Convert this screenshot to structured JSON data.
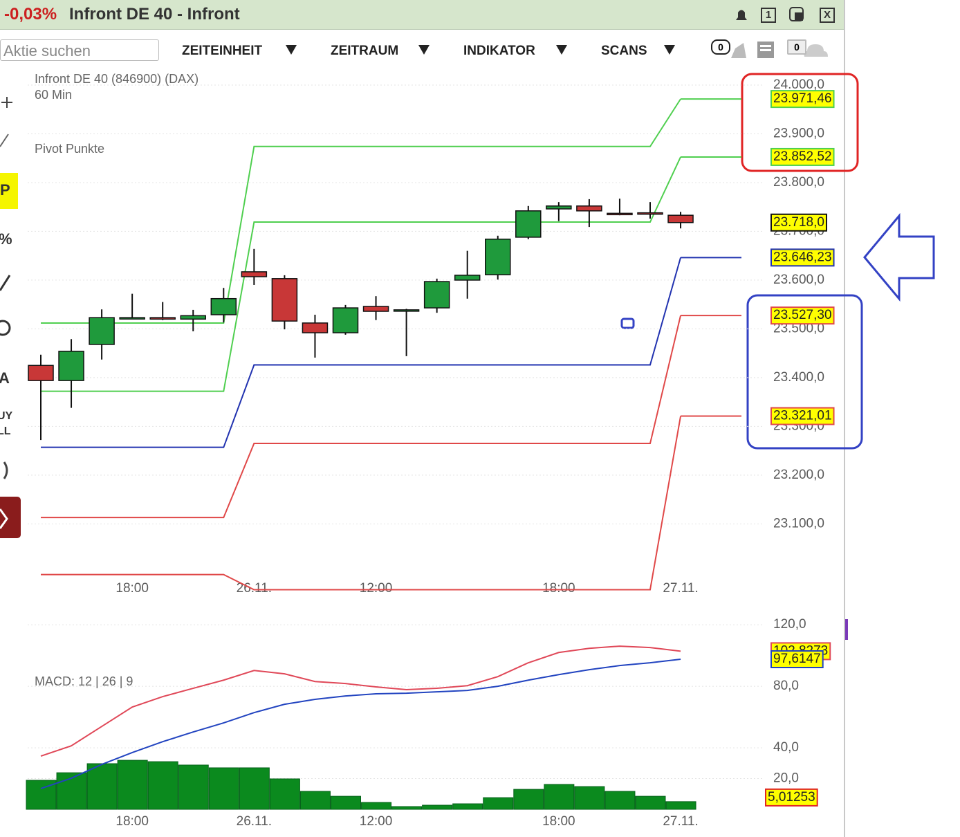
{
  "header": {
    "change": "-0,03%",
    "title": "Infront DE 40 - Infront",
    "window_buttons": [
      "1",
      "X"
    ]
  },
  "toolbar": {
    "search_placeholder": "Aktie suchen",
    "menus": [
      "ZEITEINHEIT",
      "ZEITRAUM",
      "INDIKATOR",
      "SCANS"
    ],
    "badges": [
      "0",
      "0"
    ]
  },
  "left_tools": [
    "P",
    "%",
    "A",
    "UY",
    "LL"
  ],
  "chart_data": [
    {
      "type": "candlestick",
      "title": "Infront DE 40 (846900) (DAX)",
      "subtitle": "60 Min",
      "annotation": "Pivot Punkte",
      "categories": [
        null,
        null,
        null,
        "18:00",
        null,
        null,
        null,
        "26.11.",
        null,
        null,
        null,
        "12:00",
        null,
        null,
        null,
        null,
        null,
        "18:00",
        null,
        null,
        null,
        "27.11."
      ],
      "open": [
        23425,
        23394,
        23468,
        23523,
        23523,
        23520,
        23529,
        23617,
        23603,
        23512,
        23492,
        23546,
        23539,
        23543,
        23600,
        23611,
        23688,
        23746,
        23752,
        23737,
        23738,
        23733
      ],
      "high": [
        23447,
        23479,
        23540,
        23572,
        23555,
        23539,
        23584,
        23664,
        23610,
        23529,
        23549,
        23567,
        23541,
        23603,
        23660,
        23691,
        23752,
        23760,
        23766,
        23767,
        23760,
        23740
      ],
      "low": [
        23272,
        23338,
        23437,
        23520,
        23518,
        23495,
        23513,
        23590,
        23499,
        23441,
        23488,
        23518,
        23444,
        23533,
        23562,
        23601,
        23684,
        23721,
        23709,
        23733,
        23726,
        23706
      ],
      "close": [
        23394,
        23454,
        23523,
        23523,
        23520,
        23527,
        23562,
        23607,
        23516,
        23492,
        23543,
        23536,
        23539,
        23597,
        23610,
        23684,
        23742,
        23752,
        23742,
        23736,
        23737,
        23718
      ],
      "up_color": "#1f9a3c",
      "down_color": "#c83737",
      "last_label": "23.718,0",
      "series": [
        {
          "color": "#4fcf4f",
          "values": [
            23512,
            23512,
            23512,
            23512,
            23512,
            23512,
            23512,
            23874,
            23874,
            23874,
            23874,
            23874,
            23874,
            23874,
            23874,
            23874,
            23874,
            23874,
            23874,
            23874,
            23874,
            23971.46
          ],
          "last_label": "23.971,46"
        },
        {
          "color": "#4fcf4f",
          "values": [
            23372,
            23372,
            23372,
            23372,
            23372,
            23372,
            23372,
            23719,
            23719,
            23719,
            23719,
            23719,
            23719,
            23719,
            23719,
            23719,
            23719,
            23719,
            23719,
            23719,
            23719,
            23852.52
          ],
          "last_label": "23.852,52"
        },
        {
          "color": "#2233b0",
          "values": [
            23257,
            23257,
            23257,
            23257,
            23257,
            23257,
            23257,
            23426,
            23426,
            23426,
            23426,
            23426,
            23426,
            23426,
            23426,
            23426,
            23426,
            23426,
            23426,
            23426,
            23426,
            23646.23
          ],
          "last_label": "23.646,23"
        },
        {
          "color": "#e04848",
          "values": [
            23113,
            23113,
            23113,
            23113,
            23113,
            23113,
            23113,
            23265,
            23265,
            23265,
            23265,
            23265,
            23265,
            23265,
            23265,
            23265,
            23265,
            23265,
            23265,
            23265,
            23265,
            23527.3
          ],
          "last_label": "23.527,30"
        },
        {
          "color": "#e04848",
          "values": [
            22996,
            22996,
            22996,
            22996,
            22996,
            22996,
            22996,
            22965,
            22965,
            22965,
            22965,
            22965,
            22965,
            22965,
            22965,
            22965,
            22965,
            22965,
            22965,
            22965,
            22965,
            23321.01
          ],
          "last_label": "23.321,01"
        }
      ],
      "ylim": [
        22960,
        24040
      ],
      "yticks": [
        {
          "value": 24000,
          "label": "24.000,0"
        },
        {
          "value": 23900,
          "label": "23.900,0"
        },
        {
          "value": 23800,
          "label": "23.800,0"
        },
        {
          "value": 23700,
          "label": "23.700,0"
        },
        {
          "value": 23600,
          "label": "23.600,0"
        },
        {
          "value": 23500,
          "label": "23.500,0"
        },
        {
          "value": 23400,
          "label": "23.400,0"
        },
        {
          "value": 23300,
          "label": "23.300,0"
        },
        {
          "value": 23200,
          "label": "23.200,0"
        },
        {
          "value": 23100,
          "label": "23.100,0"
        }
      ],
      "grid": true
    },
    {
      "type": "macd",
      "title": "MACD: 12 | 26 | 9",
      "categories": [
        null,
        null,
        null,
        "18:00",
        null,
        null,
        null,
        "26.11.",
        null,
        null,
        null,
        "12:00",
        null,
        null,
        null,
        null,
        null,
        "18:00",
        null,
        null,
        null,
        "27.11."
      ],
      "series": [
        {
          "color": "#e04858",
          "values": [
            34.6,
            41.3,
            53.9,
            66.5,
            73.3,
            78.7,
            84.0,
            90.3,
            88.1,
            83.1,
            81.8,
            79.6,
            77.8,
            78.7,
            80.4,
            86.3,
            95.3,
            102.0,
            104.7,
            106.1,
            105.2,
            102.8273
          ],
          "last_label": "102,8273"
        },
        {
          "color": "#2244c0",
          "values": [
            13.5,
            20.2,
            29.2,
            36.9,
            44.0,
            50.3,
            56.2,
            62.9,
            68.3,
            71.5,
            73.7,
            75.1,
            75.5,
            76.4,
            77.3,
            80.0,
            84.0,
            87.6,
            90.8,
            93.5,
            95.3,
            97.6147
          ],
          "last_label": "97,6147"
        }
      ],
      "histogram": {
        "color": "#0b8a1e",
        "values": [
          18.9,
          23.8,
          29.7,
          31.9,
          31.0,
          28.8,
          27.0,
          27.0,
          19.8,
          11.7,
          8.5,
          4.5,
          1.8,
          2.7,
          3.6,
          7.6,
          13.0,
          16.2,
          14.8,
          11.7,
          8.5,
          5.01253
        ],
        "last_label": "5,01253"
      },
      "ylim": [
        0,
        130
      ],
      "yticks": [
        {
          "value": 120,
          "label": "120,0"
        },
        {
          "value": 80,
          "label": "80,0"
        },
        {
          "value": 40,
          "label": "40,0"
        },
        {
          "value": 20,
          "label": "20,0"
        }
      ],
      "grid": true
    }
  ]
}
